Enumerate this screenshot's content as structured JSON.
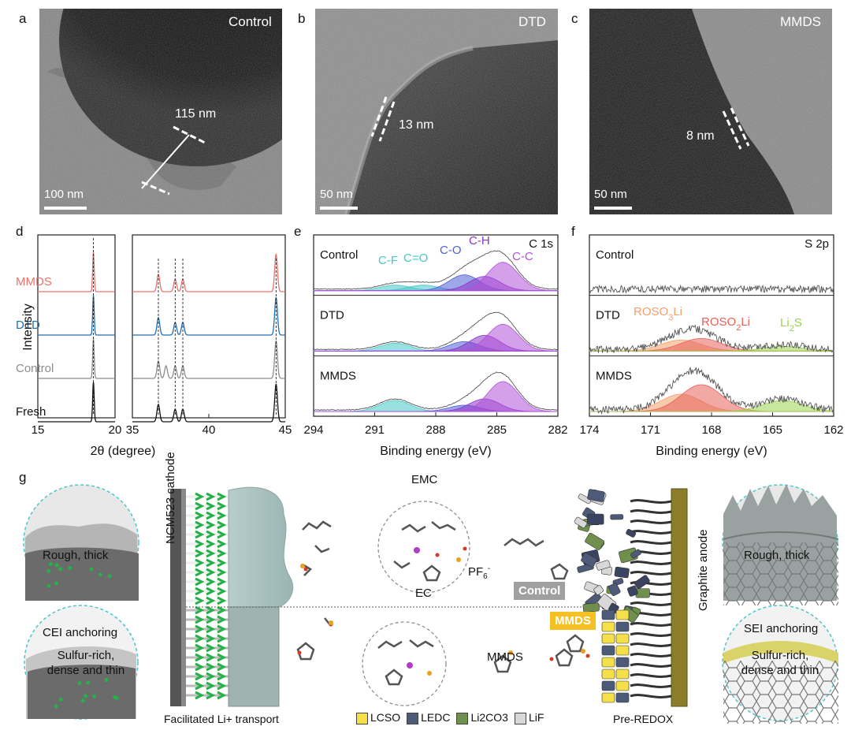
{
  "panels": {
    "a": {
      "letter": "a",
      "title": "Control",
      "measure": "115 nm",
      "scale": "100 nm"
    },
    "b": {
      "letter": "b",
      "title": "DTD",
      "measure": "13 nm",
      "scale": "50 nm"
    },
    "c": {
      "letter": "c",
      "title": "MMDS",
      "measure": "8 nm",
      "scale": "50 nm"
    },
    "d": {
      "letter": "d"
    },
    "e": {
      "letter": "e"
    },
    "f": {
      "letter": "f"
    },
    "g": {
      "letter": "g"
    }
  },
  "chart_data": [
    {
      "id": "d",
      "type": "line",
      "title": "",
      "ylabel": "Intensity",
      "xlabel": "2θ (degree)",
      "xlim_left": [
        15,
        20
      ],
      "xlim_right": [
        35,
        45
      ],
      "xticks_left": [
        "15",
        "20"
      ],
      "xticks_right": [
        "35",
        "40",
        "45"
      ],
      "series": [
        {
          "name": "MMDS",
          "color": "#e8736c",
          "peaks_deg": [
            18.6,
            36.7,
            37.8,
            38.3,
            44.4
          ]
        },
        {
          "name": "DTD",
          "color": "#1f6fb5",
          "peaks_deg": [
            18.6,
            36.7,
            37.8,
            38.3,
            44.4
          ]
        },
        {
          "name": "Control",
          "color": "#8c8c8c",
          "peaks_deg": [
            18.6,
            36.7,
            37.2,
            37.8,
            38.3,
            44.4
          ]
        },
        {
          "name": "Fresh",
          "color": "#111111",
          "peaks_deg": [
            18.6,
            36.7,
            37.8,
            38.3,
            44.4
          ]
        }
      ]
    },
    {
      "id": "e",
      "type": "area",
      "title": "C 1s",
      "xlabel": "Binding energy (eV)",
      "xlim": [
        294,
        282
      ],
      "xticks": [
        "294",
        "291",
        "288",
        "285",
        "282"
      ],
      "rows": [
        "Control",
        "DTD",
        "MMDS"
      ],
      "components": [
        {
          "name": "C-F",
          "center_ev": 290.0,
          "color": "#45c7c9"
        },
        {
          "name": "C=O",
          "center_ev": 288.6,
          "color": "#45c7c9"
        },
        {
          "name": "C-O",
          "center_ev": 286.6,
          "color": "#4f5fd6"
        },
        {
          "name": "C-H",
          "center_ev": 285.6,
          "color": "#8b34c8"
        },
        {
          "name": "C-C",
          "center_ev": 284.7,
          "color": "#b052d8"
        }
      ]
    },
    {
      "id": "f",
      "type": "area",
      "title": "S 2p",
      "xlabel": "Binding energy (eV)",
      "xlim": [
        174,
        162
      ],
      "xticks": [
        "174",
        "171",
        "168",
        "165",
        "162"
      ],
      "rows": [
        "Control",
        "DTD",
        "MMDS"
      ],
      "components": [
        {
          "name": "ROSO3Li",
          "center_ev": 169.5,
          "color": "#f2a06b"
        },
        {
          "name": "ROSO2Li",
          "center_ev": 168.5,
          "color": "#e8605a"
        },
        {
          "name": "Li2S",
          "center_ev": 164.5,
          "color": "#9bd14e"
        }
      ]
    }
  ],
  "schematic": {
    "cathode_label": "NCM523 cathode",
    "anode_label": "Graphite anode",
    "left_top_bubble": "Rough, thick",
    "left_bottom_title": "CEI anchoring",
    "left_bottom_bubble": "Sulfur-rich, dense and thin",
    "right_top_bubble": "Rough, thick",
    "right_bottom_title": "SEI anchoring",
    "right_bottom_bubble": "Sulfur-rich, dense and thin",
    "emc": "EMC",
    "ec": "EC",
    "pf6": "PF6-",
    "mmds": "MMDS",
    "control_tag": "Control",
    "mmds_tag": "MMDS",
    "caption_left": "Facilitated Li+ transport",
    "caption_right": "Pre-REDOX",
    "legend": [
      {
        "label": "LCSO",
        "color": "#f5e04a"
      },
      {
        "label": "LEDC",
        "color": "#4d5a78"
      },
      {
        "label": "Li2CO3",
        "color": "#6f8f4d"
      },
      {
        "label": "LiF",
        "color": "#d8d8d8"
      }
    ]
  },
  "colors": {
    "control_tag": "#a0a0a0",
    "mmds_tag": "#f5c023",
    "bubble_outline": "#4cc6c8"
  }
}
